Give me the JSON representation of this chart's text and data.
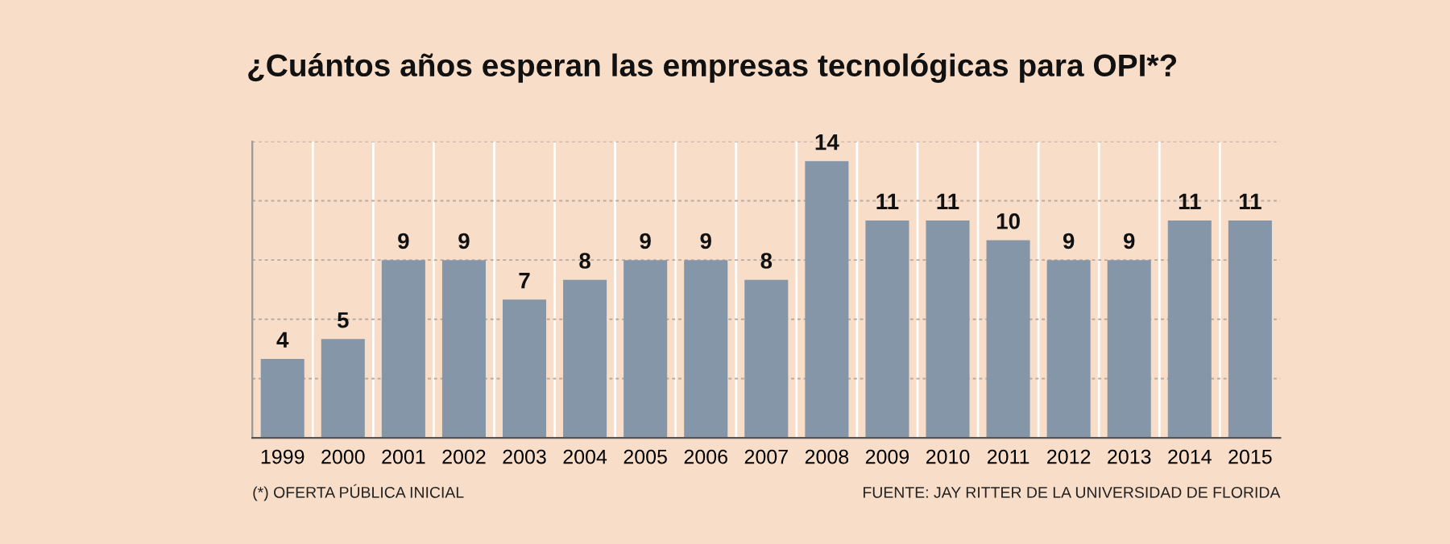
{
  "chart_data": {
    "type": "bar",
    "title": "¿Cuántos años esperan las empresas tecnológicas para OPI*?",
    "categories": [
      "1999",
      "2000",
      "2001",
      "2002",
      "2003",
      "2004",
      "2005",
      "2006",
      "2007",
      "2008",
      "2009",
      "2010",
      "2011",
      "2012",
      "2013",
      "2014",
      "2015"
    ],
    "values": [
      4,
      5,
      9,
      9,
      7,
      8,
      9,
      9,
      8,
      14,
      11,
      11,
      10,
      9,
      9,
      11,
      11
    ],
    "color": "#8496a8",
    "data_labels": true,
    "ylim": [
      0,
      15
    ],
    "yticks": [
      {
        "value": 0,
        "label": null
      },
      {
        "value": 3,
        "label": null
      },
      {
        "value": 6,
        "label": null
      },
      {
        "value": 9,
        "label": null
      },
      {
        "value": 12,
        "label": null
      },
      {
        "value": 15,
        "label": null
      }
    ],
    "grid": "y",
    "annotations": [
      "(*) OFERTA PÚBLICA INICIAL",
      "FUENTE: JAY RITTER DE LA UNIVERSIDAD DE FLORIDA"
    ]
  }
}
